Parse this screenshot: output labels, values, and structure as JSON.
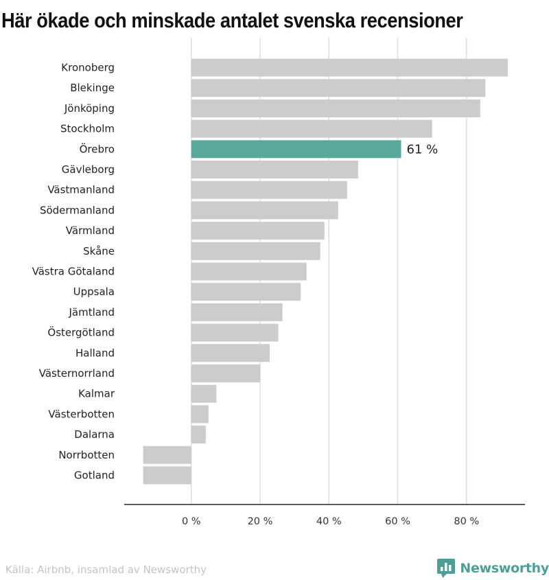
{
  "title": "Här ökade och minskade antalet svenska recensioner",
  "source": "Källa: Airbnb, insamlad av Newsworthy",
  "brand": {
    "name": "Newsworthy",
    "logo_icon": "newsworthy-logo-icon",
    "color": "#4d9e97"
  },
  "chart_data": {
    "type": "bar",
    "orientation": "horizontal",
    "categories": [
      "Kronoberg",
      "Blekinge",
      "Jönköping",
      "Stockholm",
      "Örebro",
      "Gävleborg",
      "Västmanland",
      "Södermanland",
      "Värmland",
      "Skåne",
      "Västra Götaland",
      "Uppsala",
      "Jämtland",
      "Östergötland",
      "Halland",
      "Västernorrland",
      "Kalmar",
      "Västerbotten",
      "Dalarna",
      "Norrbotten",
      "Gotland"
    ],
    "values": [
      92,
      85.5,
      84,
      70,
      61,
      48.5,
      45.3,
      42.7,
      38.7,
      37.5,
      33.5,
      31.8,
      26.5,
      25.3,
      22.8,
      20,
      7.3,
      5,
      4.2,
      -14,
      -14
    ],
    "highlight": "Örebro",
    "highlight_label": "61 %",
    "xlim": [
      -19.5,
      97
    ],
    "xticks": [
      0,
      20,
      40,
      60,
      80
    ],
    "xtick_labels": [
      "0 %",
      "20 %",
      "40 %",
      "60 %",
      "80 %"
    ],
    "grid": "vertical",
    "colors": {
      "bar": "#cccccc",
      "highlight": "#5aa89c",
      "grid": "#dddddd",
      "axis": "#222222"
    }
  }
}
